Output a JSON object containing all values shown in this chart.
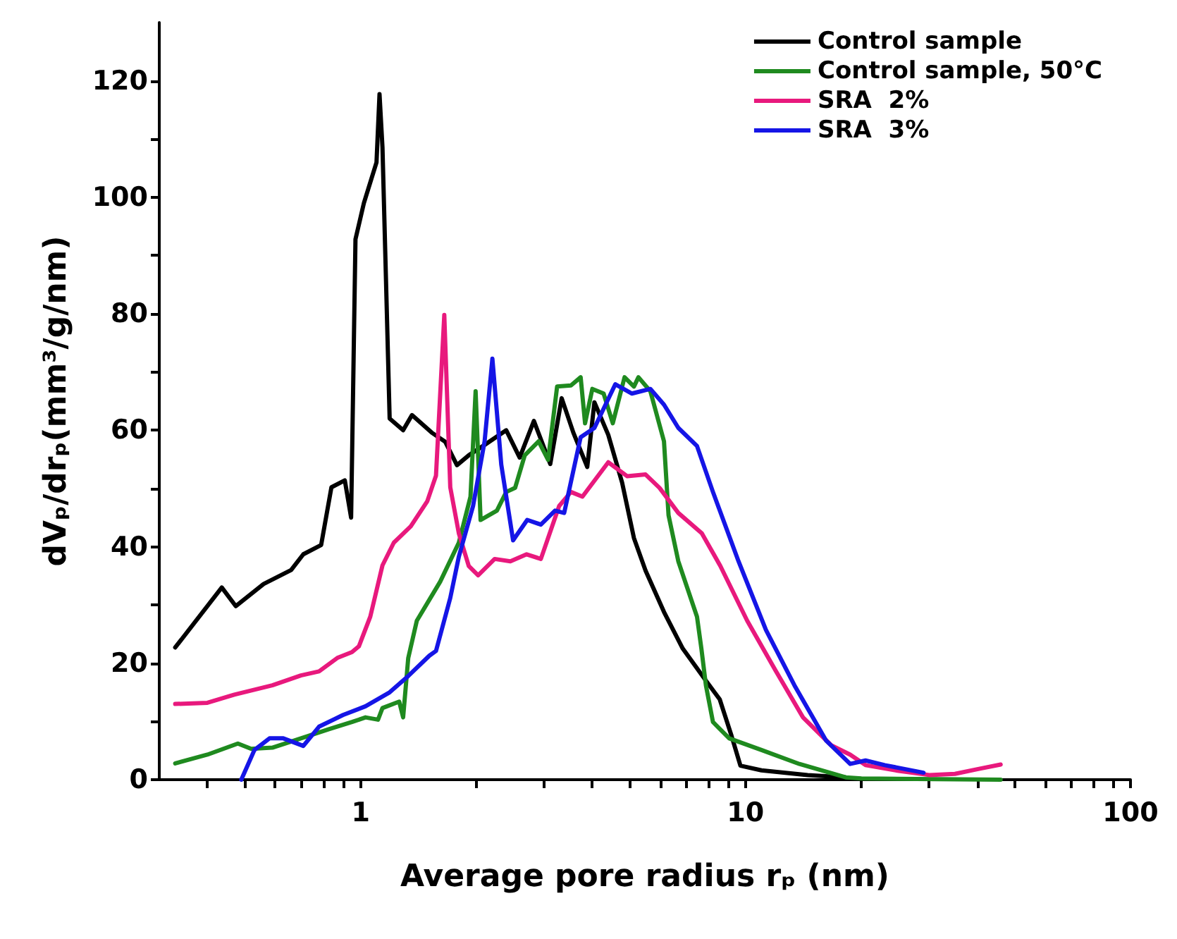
{
  "chart_data": {
    "type": "line",
    "xlabel": "Average pore radius rₚ (nm)",
    "ylabel": "dVₚ/drₚ(mm³/g/nm)",
    "log": "x",
    "xlim": [
      0.3,
      100
    ],
    "ylim": [
      0,
      130
    ],
    "xticks": [
      {
        "value": 0.4,
        "label": null
      },
      {
        "value": 0.5,
        "label": null
      },
      {
        "value": 0.6,
        "label": null
      },
      {
        "value": 0.7,
        "label": null
      },
      {
        "value": 0.8,
        "label": null
      },
      {
        "value": 0.9,
        "label": null
      },
      1,
      {
        "value": 2,
        "label": null
      },
      {
        "value": 3,
        "label": null
      },
      {
        "value": 4,
        "label": null
      },
      {
        "value": 5,
        "label": null
      },
      {
        "value": 6,
        "label": null
      },
      {
        "value": 7,
        "label": null
      },
      {
        "value": 8,
        "label": null
      },
      {
        "value": 9,
        "label": null
      },
      10,
      {
        "value": 20,
        "label": null
      },
      {
        "value": 30,
        "label": null
      },
      {
        "value": 40,
        "label": null
      },
      {
        "value": 50,
        "label": null
      },
      {
        "value": 60,
        "label": null
      },
      {
        "value": 70,
        "label": null
      },
      {
        "value": 80,
        "label": null
      },
      {
        "value": 90,
        "label": null
      },
      100
    ],
    "yticks": [
      0,
      {
        "value": 10,
        "label": null
      },
      20,
      {
        "value": 30,
        "label": null
      },
      40,
      {
        "value": 50,
        "label": null
      },
      60,
      {
        "value": 70,
        "label": null
      },
      80,
      {
        "value": 90,
        "label": null
      },
      100,
      {
        "value": 110,
        "label": null
      },
      120
    ],
    "grid": false,
    "legend": "top right",
    "marker": "none",
    "line_style": "solid",
    "series": [
      {
        "name": "Control sample",
        "color": "#000000",
        "x": [
          0.33,
          0.436,
          0.474,
          0.56,
          0.66,
          0.71,
          0.79,
          0.84,
          0.91,
          0.945,
          0.97,
          1.02,
          1.1,
          1.12,
          1.14,
          1.19,
          1.29,
          1.36,
          1.53,
          1.66,
          1.78,
          1.91,
          2.08,
          2.39,
          2.59,
          2.82,
          3.11,
          3.33,
          3.57,
          3.88,
          4.05,
          4.4,
          4.78,
          5.13,
          5.5,
          6.14,
          6.87,
          7.89,
          8.57,
          9.2,
          9.7,
          11,
          14.5,
          18.2
        ],
        "values": [
          22.7,
          33,
          29.8,
          33.6,
          36,
          38.7,
          40.3,
          50.2,
          51.4,
          45,
          92.8,
          99,
          106,
          117.7,
          108.6,
          62,
          60,
          62.6,
          59.6,
          58,
          54,
          55.7,
          57.3,
          60,
          55.3,
          61.6,
          54.2,
          65.5,
          59.6,
          53.7,
          64.8,
          59.2,
          51,
          41.5,
          35.9,
          28.8,
          22.5,
          17,
          13.8,
          7.5,
          2.4,
          1.6,
          0.8,
          0.4
        ]
      },
      {
        "name": "Control sample, 50°C",
        "color": "#1f8a1f",
        "x": [
          0.33,
          0.4,
          0.48,
          0.52,
          0.59,
          0.7,
          0.83,
          0.95,
          1.03,
          1.11,
          1.14,
          1.26,
          1.29,
          1.33,
          1.4,
          1.61,
          1.8,
          1.93,
          1.99,
          2.05,
          2.26,
          2.39,
          2.52,
          2.67,
          2.9,
          3.07,
          3.24,
          3.52,
          3.73,
          3.83,
          4.0,
          4.28,
          4.52,
          4.85,
          5.13,
          5.27,
          5.66,
          6.14,
          6.31,
          6.69,
          7.48,
          7.68,
          7.89,
          8.23,
          9.07,
          11,
          13.8,
          18.2,
          20,
          46
        ],
        "values": [
          2.8,
          4.3,
          6.2,
          5.3,
          5.5,
          7.1,
          8.7,
          9.9,
          10.7,
          10.3,
          12.3,
          13.4,
          10.7,
          20.9,
          27.3,
          34,
          40.7,
          48.6,
          66.7,
          44.6,
          46.2,
          49.4,
          50.1,
          55.7,
          58.1,
          54.9,
          67.5,
          67.7,
          69.1,
          61.2,
          67.1,
          66.3,
          61.2,
          69.1,
          67.5,
          69.1,
          66.7,
          58.1,
          45.4,
          37.5,
          28,
          22.5,
          16.2,
          9.9,
          7.1,
          5.1,
          2.7,
          0.4,
          0.2,
          0
        ]
      },
      {
        "name": "SRA  2%",
        "color": "#e8197d",
        "x": [
          0.33,
          0.4,
          0.47,
          0.59,
          0.7,
          0.78,
          0.87,
          0.95,
          0.99,
          1.06,
          1.14,
          1.22,
          1.35,
          1.49,
          1.57,
          1.65,
          1.71,
          1.8,
          1.91,
          2.02,
          2.23,
          2.45,
          2.7,
          2.94,
          3.28,
          3.52,
          3.77,
          4.4,
          4.93,
          5.5,
          5.98,
          6.69,
          7.7,
          8.6,
          10.1,
          12,
          14.1,
          16.7,
          18.7,
          20.5,
          25,
          30,
          35,
          40,
          46
        ],
        "values": [
          13,
          13.2,
          14.6,
          16.2,
          17.9,
          18.6,
          20.9,
          21.9,
          22.9,
          28,
          36.8,
          40.7,
          43.5,
          47.8,
          52.2,
          79.8,
          50.2,
          42.3,
          36.7,
          35.1,
          37.9,
          37.5,
          38.7,
          37.9,
          47,
          49.4,
          48.6,
          54.5,
          52.1,
          52.4,
          50.1,
          45.8,
          42.3,
          36.7,
          27.3,
          18.6,
          10.7,
          5.9,
          4.3,
          2.5,
          1.5,
          0.8,
          1,
          1.8,
          2.6
        ]
      },
      {
        "name": "SRA  3%",
        "color": "#1515e6",
        "x": [
          0.49,
          0.53,
          0.58,
          0.63,
          0.71,
          0.78,
          0.9,
          1.03,
          1.19,
          1.33,
          1.51,
          1.57,
          1.71,
          1.8,
          1.96,
          2.1,
          2.2,
          2.32,
          2.49,
          2.71,
          2.94,
          3.2,
          3.38,
          3.73,
          4.05,
          4.59,
          5.07,
          5.66,
          6.14,
          6.69,
          7.48,
          8.23,
          9.59,
          11.3,
          13.4,
          16.2,
          18.7,
          20.5,
          23,
          29
        ],
        "values": [
          0,
          5.1,
          7.1,
          7.1,
          5.8,
          9.1,
          11.1,
          12.6,
          15,
          17.8,
          21.3,
          22.1,
          31.2,
          38.3,
          47,
          58.1,
          72.3,
          54.1,
          41.1,
          44.6,
          43.8,
          46.2,
          45.8,
          58.8,
          60.4,
          67.9,
          66.3,
          67.1,
          64.4,
          60.4,
          57.3,
          49.4,
          37.5,
          25.7,
          16.2,
          6.7,
          2.7,
          3.3,
          2.5,
          1.2
        ]
      }
    ]
  }
}
